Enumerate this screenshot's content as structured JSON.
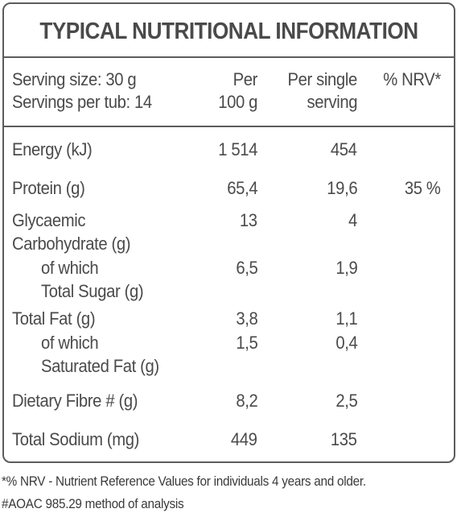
{
  "title": "TYPICAL NUTRITIONAL INFORMATION",
  "header": {
    "serving_size": "Serving size: 30 g",
    "servings_per_tub": "Servings per tub: 14",
    "col_per_100_line1": "Per",
    "col_per_100_line2": "100 g",
    "col_per_serving_line1": "Per single",
    "col_per_serving_line2": "serving",
    "col_nrv": "% NRV*"
  },
  "rows": {
    "energy": {
      "label": "Energy (kJ)",
      "per100": "1 514",
      "serving": "454",
      "nrv": ""
    },
    "protein": {
      "label": "Protein (g)",
      "per100": "65,4",
      "serving": "19,6",
      "nrv": "35 %"
    },
    "glycaemic": {
      "label_line1": "Glycaemic",
      "label_line2": "Carbohydrate (g)",
      "per100": "13",
      "serving": "4"
    },
    "total_sugar": {
      "label_line1": "of which",
      "label_line2": "Total Sugar (g)",
      "per100": "6,5",
      "serving": "1,9"
    },
    "total_fat": {
      "label": "Total Fat (g)",
      "per100": "3,8",
      "serving": "1,1"
    },
    "saturated_fat": {
      "label_line1": "of which",
      "label_line2": "Saturated Fat (g)",
      "per100": "1,5",
      "serving": "0,4"
    },
    "fibre": {
      "label": "Dietary Fibre # (g)",
      "per100": "8,2",
      "serving": "2,5"
    },
    "sodium": {
      "label": "Total Sodium (mg)",
      "per100": "449",
      "serving": "135"
    }
  },
  "footnotes": {
    "nrv_note": "*% NRV - Nutrient Reference Values for individuals 4 years and older.",
    "aoac_note": "#AOAC 985.29 method of analysis"
  }
}
